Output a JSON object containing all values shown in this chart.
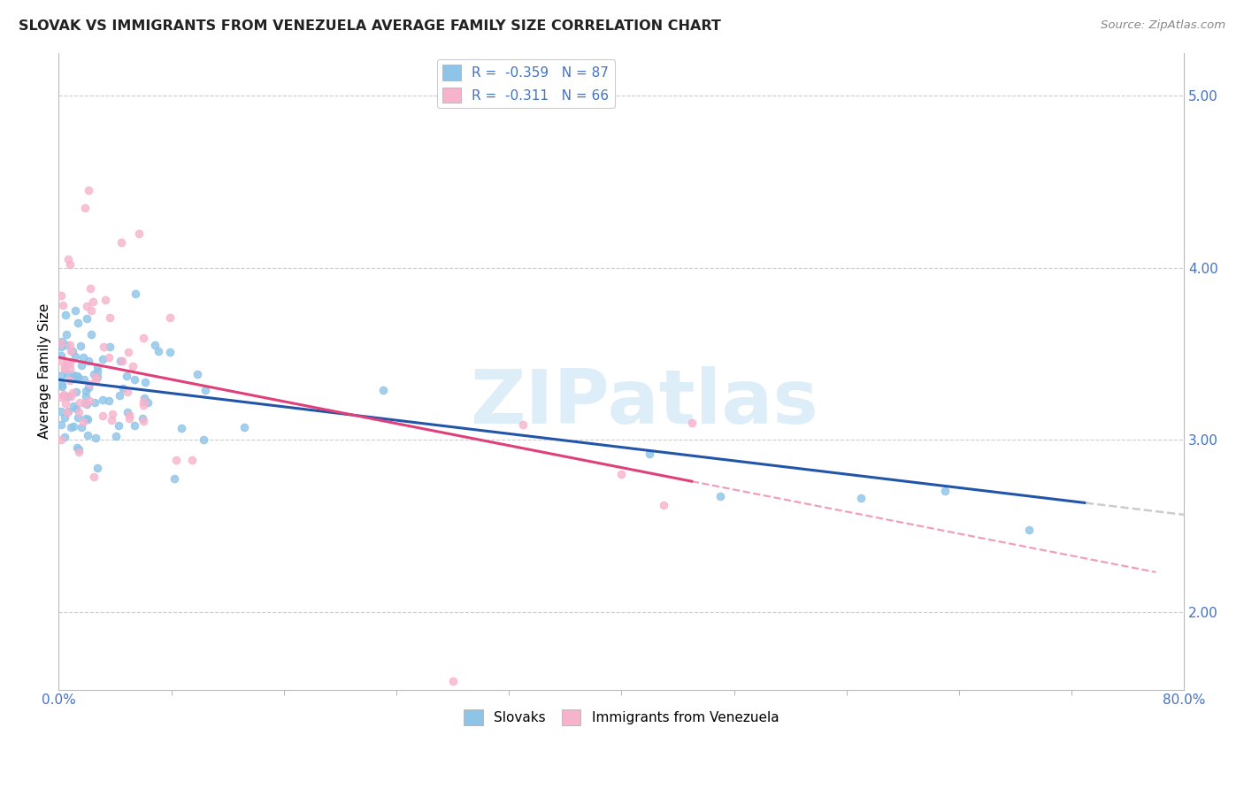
{
  "title": "SLOVAK VS IMMIGRANTS FROM VENEZUELA AVERAGE FAMILY SIZE CORRELATION CHART",
  "source": "Source: ZipAtlas.com",
  "ylabel": "Average Family Size",
  "yticks_right": [
    2.0,
    3.0,
    4.0,
    5.0
  ],
  "xlim": [
    0.0,
    80.0
  ],
  "ylim": [
    1.55,
    5.25
  ],
  "scatter_color_slovak": "#8dc4e8",
  "scatter_color_venezuela": "#f7b3cc",
  "trendline_color_slovak": "#2255aa",
  "trendline_color_venezuela": "#e0407a",
  "trendline_ext_color": "#cccccc",
  "watermark_color": "#ddeef8",
  "background_color": "#ffffff",
  "grid_color": "#cccccc",
  "axis_color": "#4472c4",
  "title_color": "#222222",
  "source_color": "#888888",
  "legend_label_color": "#4472c4",
  "slovak_intercept": 3.35,
  "slovak_slope": -0.0098,
  "venezuela_intercept": 3.48,
  "venezuela_slope": -0.016
}
